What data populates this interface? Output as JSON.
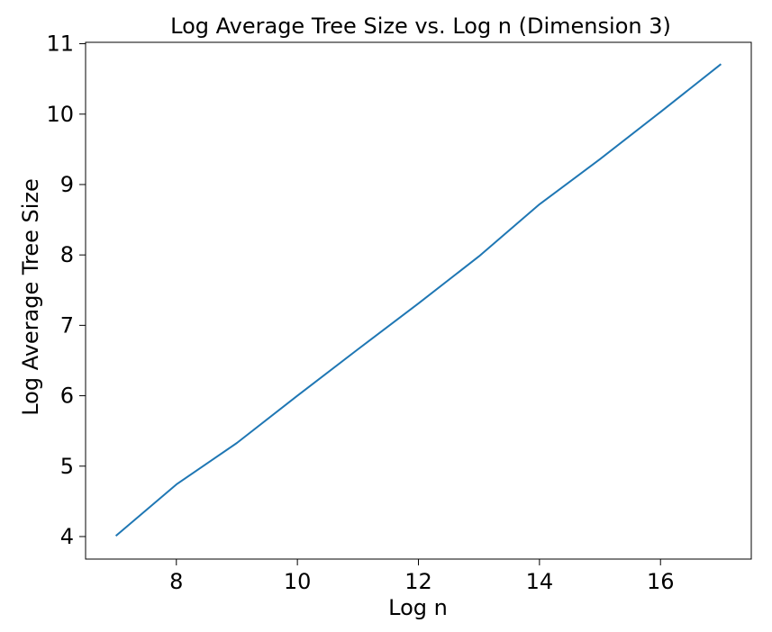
{
  "chart_data": {
    "type": "line",
    "title": "Log Average Tree Size vs. Log n (Dimension 3)",
    "xlabel": "Log n",
    "ylabel": "Log Average Tree Size",
    "xlim": [
      6.5,
      17.5
    ],
    "ylim": [
      3.68,
      11.02
    ],
    "xticks": [
      8,
      10,
      12,
      14,
      16
    ],
    "yticks": [
      4,
      5,
      6,
      7,
      8,
      9,
      10,
      11
    ],
    "grid": false,
    "legend": "none",
    "series": [
      {
        "color": "#1f77b4",
        "x": [
          7,
          8,
          9,
          10,
          11,
          12,
          13,
          14,
          15,
          16,
          17
        ],
        "y": [
          4.01,
          4.74,
          5.33,
          6.0,
          6.66,
          7.31,
          7.98,
          8.72,
          9.36,
          10.03,
          10.71
        ]
      }
    ]
  }
}
